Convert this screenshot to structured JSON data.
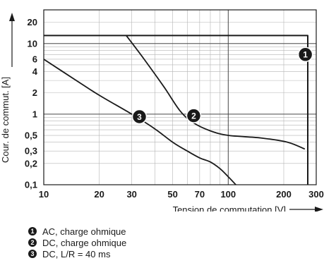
{
  "chart_data": {
    "type": "line",
    "xlabel": "Tension de commutation [V]",
    "ylabel": "Cour. de commut. [A]",
    "xscale": "log",
    "yscale": "log",
    "xlim": [
      10,
      300
    ],
    "ylim": [
      0.1,
      30
    ],
    "grid": true,
    "x_ticks": [
      10,
      20,
      30,
      50,
      70,
      100,
      200,
      300
    ],
    "x_tick_labels": [
      "10",
      "20",
      "30",
      "50",
      "70",
      "100",
      "200",
      "300"
    ],
    "y_ticks": [
      0.1,
      0.2,
      0.3,
      0.5,
      1,
      2,
      4,
      6,
      10,
      20
    ],
    "y_tick_labels": [
      "0,1",
      "0,2",
      "0,3",
      "0,5",
      "1",
      "2",
      "4",
      "6",
      "10",
      "20"
    ],
    "series": [
      {
        "name": "AC, charge ohmique",
        "marker": "1",
        "x": [
          10,
          270,
          270
        ],
        "y": [
          13,
          13,
          0.1
        ]
      },
      {
        "name": "DC, charge ohmique",
        "marker": "2",
        "x": [
          28,
          35,
          45,
          55,
          65,
          80,
          100,
          150,
          210,
          260
        ],
        "y": [
          13,
          6,
          2.4,
          1.1,
          0.75,
          0.58,
          0.5,
          0.46,
          0.4,
          0.32
        ]
      },
      {
        "name": "DC, L/R = 40 ms",
        "marker": "3",
        "x": [
          10,
          15,
          20,
          30,
          40,
          50,
          60,
          70,
          80,
          90,
          100,
          110
        ],
        "y": [
          6,
          3,
          1.85,
          1.0,
          0.62,
          0.4,
          0.3,
          0.24,
          0.21,
          0.17,
          0.13,
          0.1
        ]
      }
    ],
    "markers": [
      {
        "label": "1",
        "x": 262,
        "y": 7
      },
      {
        "label": "2",
        "x": 65,
        "y": 0.95
      },
      {
        "label": "3",
        "x": 33,
        "y": 0.92
      }
    ]
  },
  "legend": [
    {
      "num": "1",
      "label": "AC, charge ohmique"
    },
    {
      "num": "2",
      "label": "DC, charge ohmique"
    },
    {
      "num": "3",
      "label": "DC, L/R = 40 ms"
    }
  ]
}
